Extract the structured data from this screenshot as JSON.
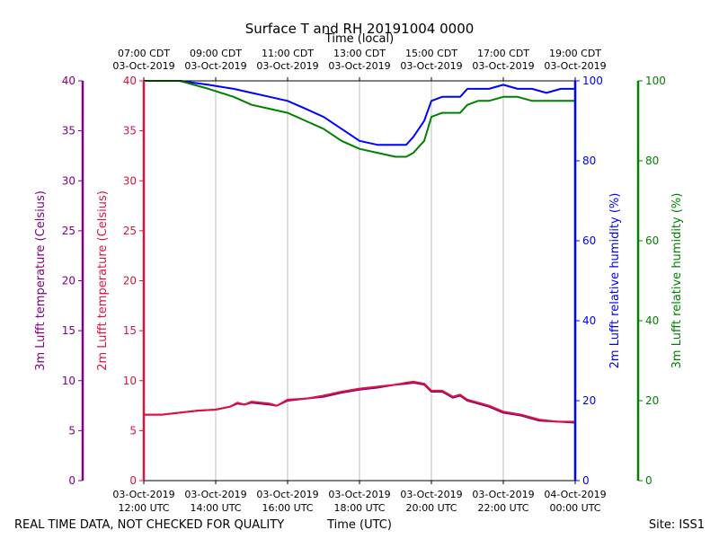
{
  "chart_data": {
    "type": "line",
    "title": "Surface T and RH 20191004 0000",
    "top_axis_label": "Time (local)",
    "xlabel": "Time (UTC)",
    "footer_left": "REAL TIME DATA, NOT CHECKED FOR QUALITY",
    "footer_right": "Site: ISS1",
    "x_unit": "hours since 03-Oct-2019 12:00 UTC",
    "xlim": [
      0,
      12
    ],
    "grid": "vertical",
    "x_ticks_utc": [
      {
        "x": 0,
        "line1": "03-Oct-2019",
        "line2": "12:00 UTC"
      },
      {
        "x": 2,
        "line1": "03-Oct-2019",
        "line2": "14:00 UTC"
      },
      {
        "x": 4,
        "line1": "03-Oct-2019",
        "line2": "16:00 UTC"
      },
      {
        "x": 6,
        "line1": "03-Oct-2019",
        "line2": "18:00 UTC"
      },
      {
        "x": 8,
        "line1": "03-Oct-2019",
        "line2": "20:00 UTC"
      },
      {
        "x": 10,
        "line1": "03-Oct-2019",
        "line2": "22:00 UTC"
      },
      {
        "x": 12,
        "line1": "04-Oct-2019",
        "line2": "00:00 UTC"
      }
    ],
    "x_ticks_local": [
      {
        "x": 0,
        "line1": "07:00 CDT",
        "line2": "03-Oct-2019"
      },
      {
        "x": 2,
        "line1": "09:00 CDT",
        "line2": "03-Oct-2019"
      },
      {
        "x": 4,
        "line1": "11:00 CDT",
        "line2": "03-Oct-2019"
      },
      {
        "x": 6,
        "line1": "13:00 CDT",
        "line2": "03-Oct-2019"
      },
      {
        "x": 8,
        "line1": "15:00 CDT",
        "line2": "03-Oct-2019"
      },
      {
        "x": 10,
        "line1": "17:00 CDT",
        "line2": "03-Oct-2019"
      },
      {
        "x": 12,
        "line1": "19:00 CDT",
        "line2": "03-Oct-2019"
      }
    ],
    "y_axes": [
      {
        "id": "t3m",
        "label": "3m Lufft temperature (Celsius)",
        "color": "#800080",
        "ylim": [
          0,
          40
        ],
        "ticks": [
          0,
          5,
          10,
          15,
          20,
          25,
          30,
          35,
          40
        ]
      },
      {
        "id": "t2m",
        "label": "2m Lufft temperature (Celsius)",
        "color": "#dc143c",
        "ylim": [
          0,
          40
        ],
        "ticks": [
          0,
          5,
          10,
          15,
          20,
          25,
          30,
          35,
          40
        ]
      },
      {
        "id": "rh2m",
        "label": "2m Lufft relative humidity (%)",
        "color": "#0000ff",
        "ylim": [
          0,
          100
        ],
        "ticks": [
          0,
          20,
          40,
          60,
          80,
          100
        ]
      },
      {
        "id": "rh3m",
        "label": "3m Lufft relative humidity (%)",
        "color": "#008000",
        "ylim": [
          0,
          100
        ],
        "ticks": [
          0,
          20,
          40,
          60,
          80,
          100
        ]
      }
    ],
    "series": [
      {
        "name": "2m Lufft relative humidity",
        "axis": "rh2m",
        "color": "#0000ff",
        "x": [
          0,
          1,
          1.8,
          2.5,
          3,
          3.5,
          4,
          4.5,
          5,
          5.5,
          6,
          6.5,
          7,
          7.3,
          7.5,
          7.8,
          8,
          8.3,
          8.8,
          9,
          9.3,
          9.6,
          10,
          10.4,
          10.8,
          11.2,
          11.6,
          12
        ],
        "y": [
          100,
          100,
          99,
          98,
          97,
          96,
          95,
          93,
          91,
          88,
          85,
          84,
          84,
          84,
          86,
          90,
          95,
          96,
          96,
          98,
          98,
          98,
          99,
          98,
          98,
          97,
          98,
          98
        ]
      },
      {
        "name": "3m Lufft relative humidity",
        "axis": "rh3m",
        "color": "#008000",
        "x": [
          0,
          1,
          1.8,
          2.5,
          3,
          3.5,
          4,
          4.5,
          5,
          5.5,
          6,
          6.5,
          7,
          7.3,
          7.5,
          7.8,
          8,
          8.3,
          8.8,
          9,
          9.3,
          9.6,
          10,
          10.4,
          10.8,
          11.2,
          11.6,
          12
        ],
        "y": [
          100,
          100,
          98,
          96,
          94,
          93,
          92,
          90,
          88,
          85,
          83,
          82,
          81,
          81,
          82,
          85,
          91,
          92,
          92,
          94,
          95,
          95,
          96,
          96,
          95,
          95,
          95,
          95
        ]
      },
      {
        "name": "3m Lufft temperature",
        "axis": "t3m",
        "color": "#800080",
        "x": [
          0,
          0.5,
          1,
          1.5,
          2,
          2.4,
          2.6,
          2.8,
          3,
          3.5,
          3.7,
          4,
          4.5,
          5,
          5.5,
          6,
          6.5,
          7,
          7.3,
          7.5,
          7.8,
          8,
          8.3,
          8.6,
          8.8,
          9,
          9.3,
          9.6,
          10,
          10.5,
          11,
          11.5,
          12
        ],
        "y": [
          6.6,
          6.6,
          6.8,
          7.0,
          7.1,
          7.4,
          7.7,
          7.6,
          7.8,
          7.6,
          7.5,
          8.0,
          8.2,
          8.4,
          8.8,
          9.1,
          9.3,
          9.6,
          9.7,
          9.8,
          9.6,
          8.9,
          8.9,
          8.3,
          8.5,
          8.0,
          7.7,
          7.4,
          6.8,
          6.5,
          6.0,
          5.9,
          5.8
        ]
      },
      {
        "name": "2m Lufft temperature",
        "axis": "t2m",
        "color": "#dc143c",
        "x": [
          0,
          0.5,
          1,
          1.5,
          2,
          2.4,
          2.6,
          2.8,
          3,
          3.5,
          3.7,
          4,
          4.5,
          5,
          5.5,
          6,
          6.5,
          7,
          7.3,
          7.5,
          7.8,
          8,
          8.3,
          8.6,
          8.8,
          9,
          9.3,
          9.6,
          10,
          10.5,
          11,
          11.5,
          12
        ],
        "y": [
          6.6,
          6.6,
          6.8,
          7.0,
          7.1,
          7.4,
          7.8,
          7.6,
          7.9,
          7.7,
          7.5,
          8.1,
          8.2,
          8.5,
          8.9,
          9.2,
          9.4,
          9.6,
          9.8,
          9.9,
          9.7,
          9.0,
          9.0,
          8.4,
          8.6,
          8.1,
          7.8,
          7.5,
          6.9,
          6.6,
          6.1,
          5.9,
          5.9
        ]
      }
    ]
  }
}
